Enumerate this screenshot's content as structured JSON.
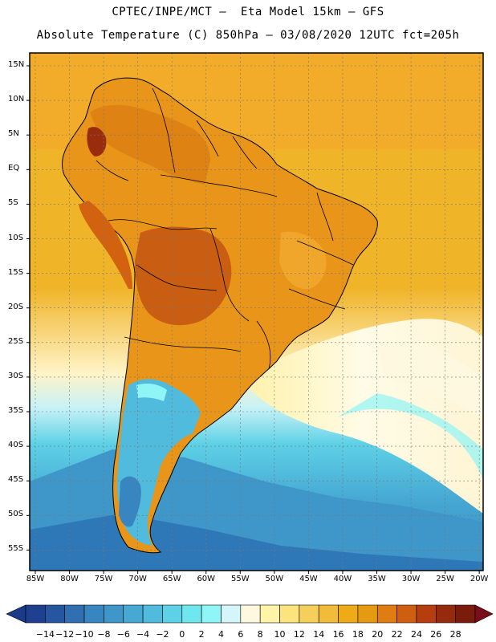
{
  "title": {
    "line1": "CPTEC/INPE/MCT –  Eta Model 15km – GFS",
    "line2": "Absolute Temperature (C) 850hPa – 03/08/2020 12UTC fct=205h"
  },
  "map": {
    "region": "South America",
    "variable": "Absolute Temperature (C) at 850hPa",
    "latitude_labels": [
      "15N",
      "10N",
      "5N",
      "EQ",
      "5S",
      "10S",
      "15S",
      "20S",
      "25S",
      "30S",
      "35S",
      "40S",
      "45S",
      "50S",
      "55S"
    ],
    "longitude_labels": [
      "85W",
      "80W",
      "75W",
      "70W",
      "65W",
      "60W",
      "55W",
      "50W",
      "45W",
      "40W",
      "35W",
      "30W",
      "25W",
      "20W"
    ]
  },
  "colorbar": {
    "labels": [
      "-14",
      "-12",
      "-10",
      "-8",
      "-6",
      "-4",
      "-2",
      "0",
      "2",
      "4",
      "6",
      "8",
      "10",
      "12",
      "14",
      "16",
      "18",
      "20",
      "22",
      "24",
      "26",
      "28"
    ],
    "colors": [
      "#1f3f8f",
      "#2656a0",
      "#2f6fb2",
      "#3886c1",
      "#3f97c9",
      "#46a8d3",
      "#50bbdd",
      "#5ed1e6",
      "#70e7ef",
      "#8ff5f7",
      "#d4f6fb",
      "#fff8e0",
      "#fff4a8",
      "#fbe37e",
      "#f6cf5a",
      "#f2bb3a",
      "#eeab17",
      "#e69a12",
      "#df7d12",
      "#d05e10",
      "#b53d0e",
      "#962a0d",
      "#7a1b0b"
    ],
    "under_color": "#1a3a8a",
    "over_color": "#7a0d1a"
  }
}
